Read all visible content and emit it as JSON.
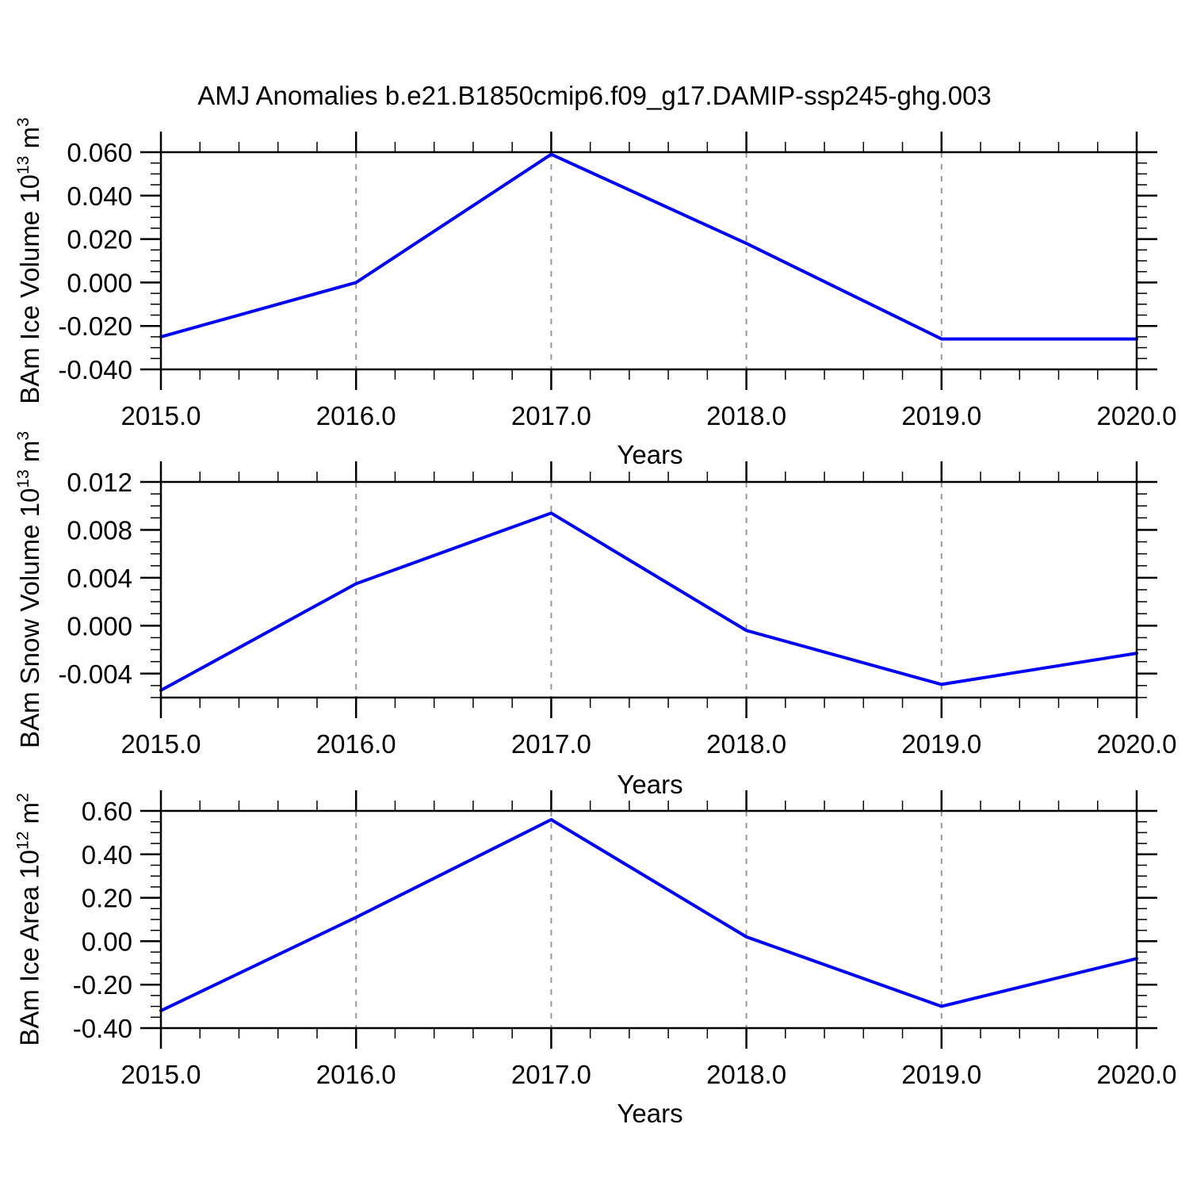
{
  "title": "AMJ Anomalies b.e21.B1850cmip6.f09_g17.DAMIP-ssp245-ghg.003",
  "colors": {
    "series_line": "#0000ff",
    "frame": "#000000",
    "grid_dash": "#999999",
    "text": "#000000",
    "background": "#ffffff"
  },
  "x_axis": {
    "label": "Years",
    "range": [
      2015.0,
      2020.0
    ],
    "tick_values": [
      2015,
      2016,
      2017,
      2018,
      2019,
      2020
    ],
    "tick_labels": [
      "2015.0",
      "2016.0",
      "2017.0",
      "2018.0",
      "2019.0",
      "2020.0"
    ],
    "minor_step": 0.2,
    "grid_years": [
      2016,
      2017,
      2018,
      2019
    ]
  },
  "chart_data": [
    {
      "type": "line",
      "series_name": "BAm Ice Volume anomaly",
      "ylabel": {
        "text": "BAm Ice Volume 10^13 m^3",
        "base": "BAm Ice Volume 10",
        "exp": "13",
        "unit": " m",
        "unit_exp": "3"
      },
      "xlabel": "Years",
      "x": [
        2015,
        2016,
        2017,
        2018,
        2019,
        2020
      ],
      "values": [
        -0.025,
        0.0,
        0.059,
        0.018,
        -0.026,
        -0.026
      ],
      "ylim": [
        -0.04,
        0.06
      ],
      "ytick_values": [
        0.06,
        0.04,
        0.02,
        0.0,
        -0.02,
        -0.04
      ],
      "ytick_labels": [
        "0.060",
        "0.040",
        "0.020",
        "0.000",
        "-0.020",
        "-0.040"
      ],
      "y_minor_step": 0.005,
      "grid": "vertical-dashed",
      "legend": "none"
    },
    {
      "type": "line",
      "series_name": "BAm Snow Volume anomaly",
      "ylabel": {
        "text": "BAm Snow Volume 10^13 m^3",
        "base": "BAm Snow Volume 10",
        "exp": "13",
        "unit": " m",
        "unit_exp": "3"
      },
      "xlabel": "Years",
      "x": [
        2015,
        2016,
        2017,
        2018,
        2019,
        2020
      ],
      "values": [
        -0.0054,
        0.0035,
        0.0094,
        -0.0004,
        -0.0049,
        -0.0023
      ],
      "ylim": [
        -0.006,
        0.012
      ],
      "ytick_values": [
        0.012,
        0.008,
        0.004,
        0.0,
        -0.004
      ],
      "ytick_labels": [
        "0.012",
        "0.008",
        "0.004",
        "0.000",
        "-0.004"
      ],
      "y_minor_step": 0.001,
      "grid": "vertical-dashed",
      "legend": "none"
    },
    {
      "type": "line",
      "series_name": "BAm Ice Area anomaly",
      "ylabel": {
        "text": "BAm Ice Area 10^12 m^2",
        "base": "BAm Ice Area 10",
        "exp": "12",
        "unit": " m",
        "unit_exp": "2"
      },
      "xlabel": "Years",
      "x": [
        2015,
        2016,
        2017,
        2018,
        2019,
        2020
      ],
      "values": [
        -0.32,
        0.11,
        0.56,
        0.02,
        -0.3,
        -0.08
      ],
      "ylim": [
        -0.4,
        0.6
      ],
      "ytick_values": [
        0.6,
        0.4,
        0.2,
        0.0,
        -0.2,
        -0.4
      ],
      "ytick_labels": [
        "0.60",
        "0.40",
        "0.20",
        "0.00",
        "-0.20",
        "-0.40"
      ],
      "y_minor_step": 0.05,
      "grid": "vertical-dashed",
      "legend": "none"
    }
  ]
}
